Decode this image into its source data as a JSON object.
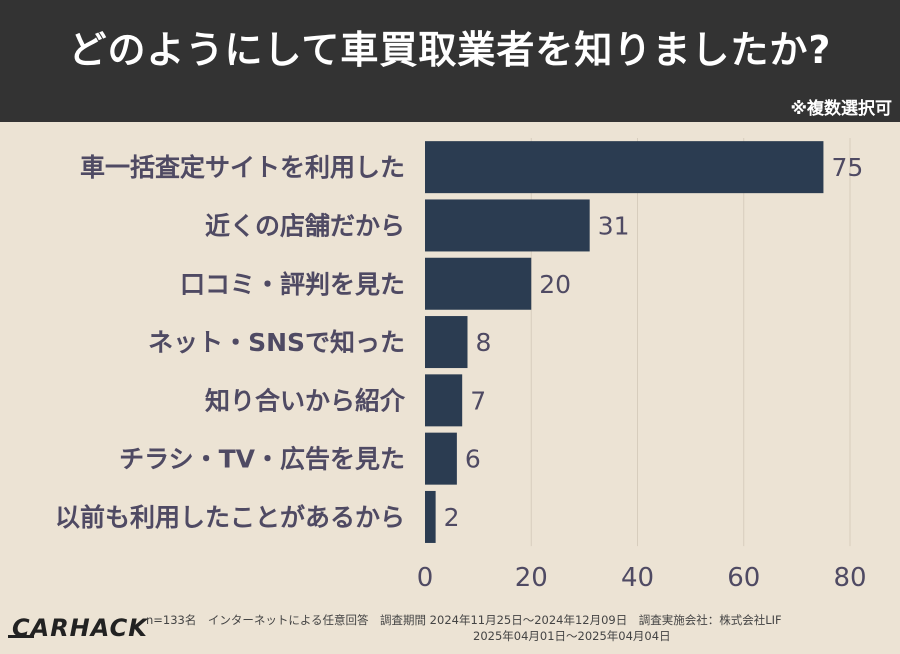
{
  "header": {
    "title": "どのようにして車買取業者を知りましたか?",
    "note": "※複数選択可"
  },
  "chart_data": {
    "type": "bar",
    "orientation": "horizontal",
    "categories": [
      "車一括査定サイトを利用した",
      "近くの店舗だから",
      "口コミ・評判を見た",
      "ネット・SNSで知った",
      "知り合いから紹介",
      "チラシ・TV・広告を見た",
      "以前も利用したことがあるから"
    ],
    "values": [
      75,
      31,
      20,
      8,
      7,
      6,
      2
    ],
    "xlim": [
      0,
      80
    ],
    "xticks": [
      0,
      20,
      40,
      60,
      80
    ],
    "grid": "vertical",
    "bar_color": "#2b3c51"
  },
  "footer": {
    "logo": "CARHACK",
    "line1": "n=133名　インターネットによる任意回答　調査期間 2024年11月25日〜2024年12月09日　調査実施会社：株式会社LIF",
    "line2": "2025年04月01日〜2025年04月04日"
  }
}
